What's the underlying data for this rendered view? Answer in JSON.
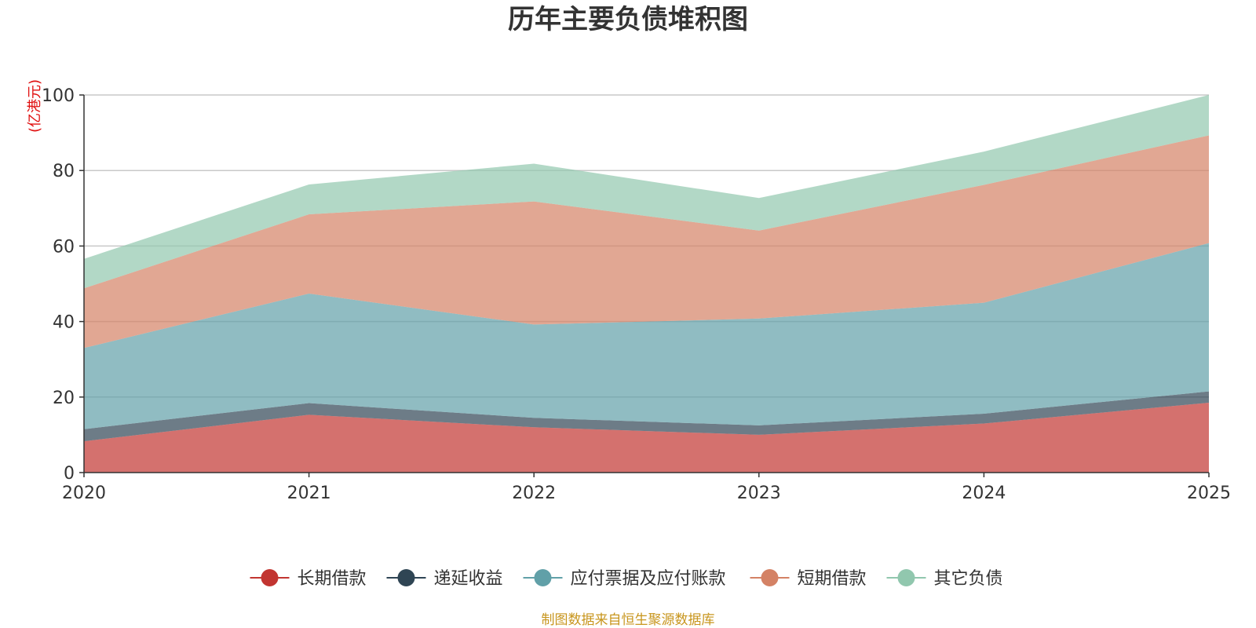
{
  "chart_data": {
    "type": "area",
    "stacked": true,
    "title": "历年主要负债堆积图",
    "unit": "(亿港元)",
    "source": "制图数据来自恒生聚源数据库",
    "xlabel": "",
    "ylabel": "(亿港元)",
    "x": [
      "2020",
      "2021",
      "2022",
      "2023",
      "2024",
      "2025"
    ],
    "ylim": [
      0,
      100
    ],
    "yticks": [
      0,
      20,
      40,
      60,
      80,
      100
    ],
    "grid": true,
    "legend_position": "bottom",
    "series": [
      {
        "name": "长期借款",
        "color": "#c23531",
        "values": [
          8.3,
          15.3,
          12.0,
          10.0,
          13.0,
          18.5
        ]
      },
      {
        "name": "递延收益",
        "color": "#2f4554",
        "values": [
          3.2,
          3.1,
          2.5,
          2.5,
          2.6,
          3.0
        ]
      },
      {
        "name": "应付票据及应付账款",
        "color": "#61a0a8",
        "values": [
          21.5,
          29.0,
          24.7,
          28.3,
          29.4,
          39.3
        ]
      },
      {
        "name": "短期借款",
        "color": "#d48265",
        "values": [
          15.8,
          21.0,
          32.6,
          23.3,
          31.2,
          28.5
        ]
      },
      {
        "name": "其它负债",
        "color": "#91c7ae",
        "values": [
          7.8,
          7.9,
          10.0,
          8.6,
          8.8,
          10.7
        ]
      }
    ]
  }
}
